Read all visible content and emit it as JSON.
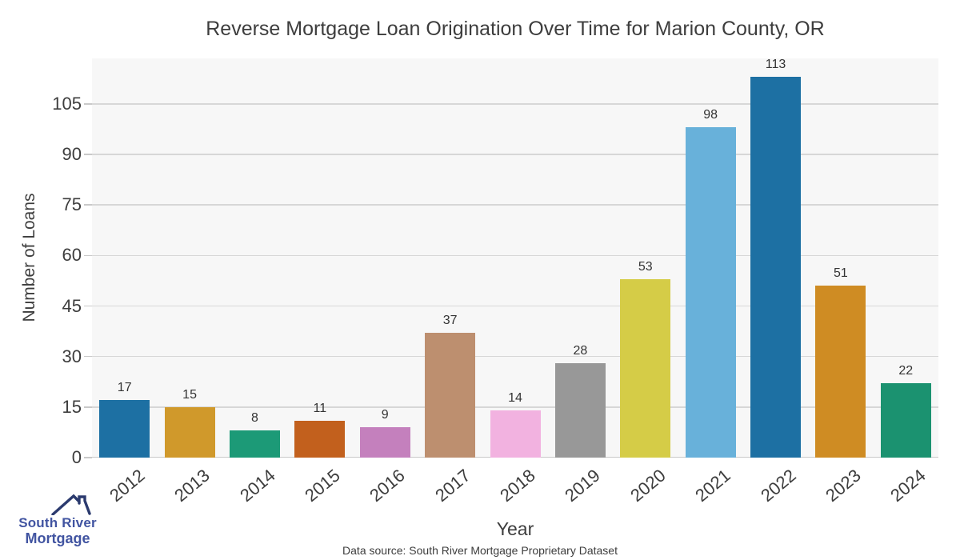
{
  "chart_data": {
    "type": "bar",
    "title": "Reverse Mortgage Loan Origination Over Time for Marion County, OR",
    "xlabel": "Year",
    "ylabel": "Number of Loans",
    "categories": [
      "2012",
      "2013",
      "2014",
      "2015",
      "2016",
      "2017",
      "2018",
      "2019",
      "2020",
      "2021",
      "2022",
      "2023",
      "2024"
    ],
    "values": [
      17,
      15,
      8,
      11,
      9,
      37,
      14,
      28,
      53,
      98,
      113,
      51,
      22
    ],
    "bar_colors": [
      "#1d70a3",
      "#d0992b",
      "#1c9a77",
      "#c2601d",
      "#c480bd",
      "#bd8f6f",
      "#f2b2e0",
      "#989898",
      "#d5cc47",
      "#68b1da",
      "#1d70a3",
      "#cf8c23",
      "#1b9270"
    ],
    "yticks": [
      0,
      15,
      30,
      45,
      60,
      75,
      90,
      105
    ],
    "ylim": [
      0,
      118.5
    ],
    "grid": "horizontal",
    "legend": "none",
    "plot_background": "#f7f7f7",
    "grid_color": "#d7d7d7",
    "text_color": "#3d3d3d"
  },
  "footer": {
    "source": "Data source: South River Mortgage Proprietary Dataset"
  },
  "logo": {
    "line1": "South River",
    "line2": "Mortgage",
    "icon": "house-roof-icon",
    "text_color": "#4154a1",
    "roof_color": "#2b3a6e"
  }
}
